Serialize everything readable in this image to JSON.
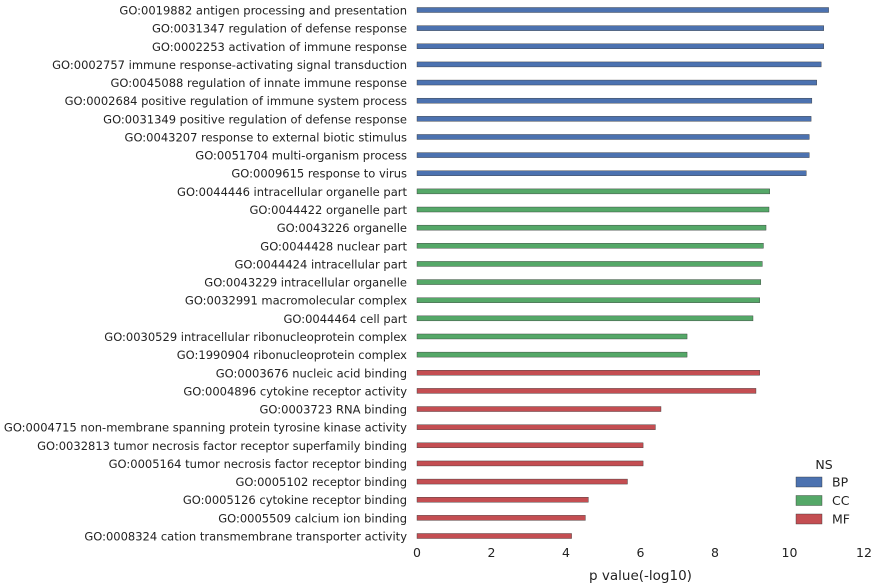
{
  "chart_data": {
    "type": "bar",
    "orientation": "horizontal",
    "xlabel": "p value(-log10)",
    "ylabel": "",
    "xlim": [
      0,
      12
    ],
    "xticks": [
      "0",
      "2",
      "4",
      "6",
      "8",
      "10",
      "12"
    ],
    "grid": false,
    "legend": {
      "title": "NS",
      "placement": "bottom-right",
      "entries": [
        {
          "name": "BP",
          "color": "#4c72b0"
        },
        {
          "name": "CC",
          "color": "#55a868"
        },
        {
          "name": "MF",
          "color": "#c44e52"
        }
      ]
    },
    "rows": [
      {
        "label": "GO:0019882 antigen processing and presentation",
        "value": 11.05,
        "ns": "BP"
      },
      {
        "label": "GO:0031347 regulation of defense response",
        "value": 10.92,
        "ns": "BP"
      },
      {
        "label": "GO:0002253 activation of immune response",
        "value": 10.92,
        "ns": "BP"
      },
      {
        "label": "GO:0002757 immune response-activating signal transduction",
        "value": 10.85,
        "ns": "BP"
      },
      {
        "label": "GO:0045088 regulation of innate immune response",
        "value": 10.73,
        "ns": "BP"
      },
      {
        "label": "GO:0002684 positive regulation of immune system process",
        "value": 10.6,
        "ns": "BP"
      },
      {
        "label": "GO:0031349 positive regulation of defense response",
        "value": 10.58,
        "ns": "BP"
      },
      {
        "label": "GO:0043207 response to external biotic stimulus",
        "value": 10.53,
        "ns": "BP"
      },
      {
        "label": "GO:0051704 multi-organism process",
        "value": 10.53,
        "ns": "BP"
      },
      {
        "label": "GO:0009615 response to virus",
        "value": 10.45,
        "ns": "BP"
      },
      {
        "label": "GO:0044446 intracellular organelle part",
        "value": 9.47,
        "ns": "CC"
      },
      {
        "label": "GO:0044422 organelle part",
        "value": 9.45,
        "ns": "CC"
      },
      {
        "label": "GO:0043226 organelle",
        "value": 9.37,
        "ns": "CC"
      },
      {
        "label": "GO:0044428 nuclear part",
        "value": 9.3,
        "ns": "CC"
      },
      {
        "label": "GO:0044424 intracellular part",
        "value": 9.27,
        "ns": "CC"
      },
      {
        "label": "GO:0043229 intracellular organelle",
        "value": 9.23,
        "ns": "CC"
      },
      {
        "label": "GO:0032991 macromolecular complex",
        "value": 9.2,
        "ns": "CC"
      },
      {
        "label": "GO:0044464 cell part",
        "value": 9.02,
        "ns": "CC"
      },
      {
        "label": "GO:0030529 intracellular ribonucleoprotein complex",
        "value": 7.25,
        "ns": "CC"
      },
      {
        "label": "GO:1990904 ribonucleoprotein complex",
        "value": 7.25,
        "ns": "CC"
      },
      {
        "label": "GO:0003676 nucleic acid binding",
        "value": 9.2,
        "ns": "MF"
      },
      {
        "label": "GO:0004896 cytokine receptor activity",
        "value": 9.1,
        "ns": "MF"
      },
      {
        "label": "GO:0003723 RNA binding",
        "value": 6.55,
        "ns": "MF"
      },
      {
        "label": "GO:0004715 non-membrane spanning protein tyrosine kinase activity",
        "value": 6.4,
        "ns": "MF"
      },
      {
        "label": "GO:0032813 tumor necrosis factor receptor superfamily binding",
        "value": 6.07,
        "ns": "MF"
      },
      {
        "label": "GO:0005164 tumor necrosis factor receptor binding",
        "value": 6.07,
        "ns": "MF"
      },
      {
        "label": "GO:0005102 receptor binding",
        "value": 5.65,
        "ns": "MF"
      },
      {
        "label": "GO:0005126 cytokine receptor binding",
        "value": 4.6,
        "ns": "MF"
      },
      {
        "label": "GO:0005509 calcium ion binding",
        "value": 4.52,
        "ns": "MF"
      },
      {
        "label": "GO:0008324 cation transmembrane transporter activity",
        "value": 4.15,
        "ns": "MF"
      }
    ]
  }
}
